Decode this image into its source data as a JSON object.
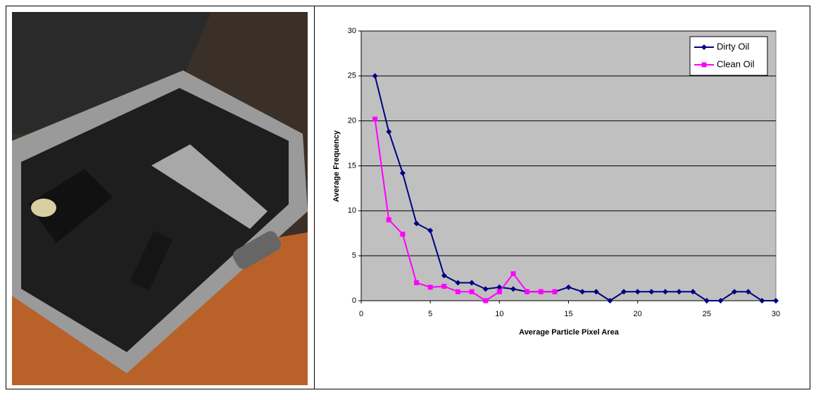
{
  "chart_data": {
    "type": "line",
    "xlabel": "Average Particle Pixel Area",
    "ylabel": "Average Frequency",
    "x": [
      1,
      2,
      3,
      4,
      5,
      6,
      7,
      8,
      9,
      10,
      11,
      12,
      13,
      14,
      15,
      16,
      17,
      18,
      19,
      20,
      21,
      22,
      23,
      24,
      25,
      26,
      27,
      28,
      29,
      30
    ],
    "series": [
      {
        "name": "Dirty Oil",
        "color": "#000080",
        "marker": "diamond",
        "values": [
          25,
          18.8,
          14.2,
          8.6,
          7.8,
          2.8,
          2,
          2,
          1.3,
          1.5,
          1.3,
          1,
          1,
          1,
          1.5,
          1,
          1,
          0,
          1,
          1,
          1,
          1,
          1,
          1,
          0,
          0,
          1,
          1,
          0,
          0
        ]
      },
      {
        "name": "Clean Oil",
        "color": "#ff00ff",
        "marker": "square",
        "values": [
          20.2,
          9,
          7.4,
          2,
          1.5,
          1.6,
          1,
          1,
          0,
          1,
          3,
          1,
          1,
          1,
          null,
          null,
          null,
          null,
          null,
          null,
          null,
          null,
          null,
          null,
          null,
          null,
          null,
          null,
          null,
          null
        ]
      }
    ],
    "xlim": [
      0,
      30
    ],
    "xticks": [
      0,
      5,
      10,
      15,
      20,
      25,
      30
    ],
    "ylim": [
      0,
      30
    ],
    "yticks": [
      0,
      5,
      10,
      15,
      20,
      25,
      30
    ],
    "grid": true,
    "legend": "top-right",
    "plot_background": "#c0c0c0"
  }
}
